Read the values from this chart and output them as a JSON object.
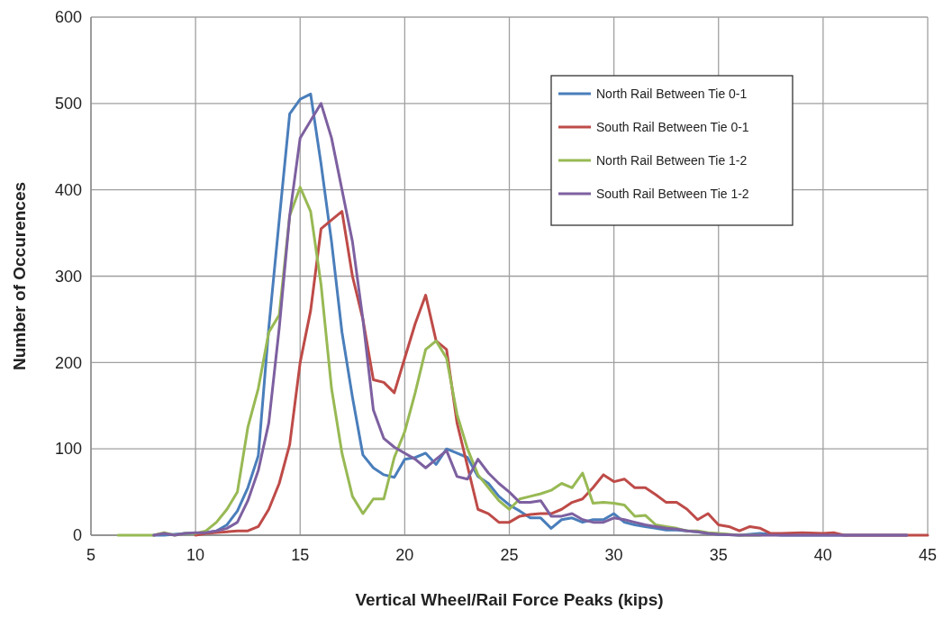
{
  "chart_data": {
    "type": "line",
    "xlabel": "Vertical Wheel/Rail Force Peaks (kips)",
    "ylabel": "Number of Occurences",
    "xlim": [
      5,
      45
    ],
    "xticks": [
      5,
      10,
      15,
      20,
      25,
      30,
      35,
      40,
      45
    ],
    "ylim": [
      0,
      600
    ],
    "yticks": [
      0,
      100,
      200,
      300,
      400,
      500,
      600
    ],
    "grid": true,
    "legend": "top right",
    "marker": "none",
    "line_style": "solid",
    "series": [
      {
        "name": "North Rail Between Tie 0-1",
        "color": "#4a7ebb",
        "x": [
          8,
          8.5,
          9,
          9.5,
          10,
          10.5,
          11,
          11.5,
          12,
          12.5,
          13,
          13.5,
          14,
          14.5,
          15,
          15.5,
          16,
          16.5,
          17,
          17.5,
          18,
          18.5,
          19,
          19.5,
          20,
          20.5,
          21,
          21.5,
          22,
          22.5,
          23,
          23.5,
          24,
          24.5,
          25,
          25.5,
          26,
          26.5,
          27,
          27.5,
          28,
          28.5,
          29,
          29.5,
          30,
          30.5,
          31,
          31.5,
          32,
          32.5,
          33,
          33.5,
          34,
          34.5,
          35,
          36,
          37,
          38,
          40,
          42,
          44
        ],
        "values": [
          0,
          0,
          1,
          2,
          2,
          3,
          5,
          12,
          28,
          55,
          92,
          240,
          365,
          488,
          505,
          511,
          430,
          340,
          235,
          160,
          93,
          78,
          70,
          67,
          88,
          90,
          95,
          82,
          100,
          95,
          90,
          68,
          60,
          45,
          35,
          28,
          20,
          20,
          8,
          18,
          20,
          15,
          18,
          18,
          25,
          15,
          12,
          10,
          8,
          6,
          6,
          5,
          4,
          2,
          1,
          0,
          2,
          0,
          0,
          0,
          0
        ]
      },
      {
        "name": "South Rail Between Tie 0-1",
        "color": "#be4b48",
        "x": [
          10,
          10.5,
          11,
          11.5,
          12,
          12.5,
          13,
          13.5,
          14,
          14.5,
          15,
          15.5,
          16,
          16.5,
          17,
          17.5,
          18,
          18.5,
          19,
          19.5,
          20,
          20.5,
          21,
          21.5,
          22,
          22.5,
          23,
          23.5,
          24,
          24.5,
          25,
          25.5,
          26,
          26.5,
          27,
          27.5,
          28,
          28.5,
          29,
          29.5,
          30,
          30.5,
          31,
          31.5,
          32,
          32.5,
          33,
          33.5,
          34,
          34.5,
          35,
          35.5,
          36,
          36.5,
          37,
          37.5,
          38,
          39,
          40,
          40.5,
          41,
          42,
          43,
          45
        ],
        "values": [
          0,
          2,
          3,
          4,
          5,
          5,
          10,
          30,
          60,
          105,
          200,
          260,
          355,
          365,
          375,
          300,
          250,
          180,
          177,
          165,
          205,
          245,
          278,
          225,
          215,
          130,
          80,
          30,
          25,
          15,
          15,
          22,
          24,
          25,
          25,
          30,
          38,
          42,
          55,
          70,
          62,
          65,
          55,
          55,
          47,
          38,
          38,
          30,
          18,
          25,
          12,
          10,
          5,
          10,
          8,
          2,
          2,
          3,
          2,
          3,
          0,
          0,
          0,
          0
        ]
      },
      {
        "name": "North Rail Between Tie 1-2",
        "color": "#98b954",
        "x": [
          6.3,
          7,
          8,
          8.5,
          9,
          9.5,
          10,
          10.5,
          11,
          11.5,
          12,
          12.5,
          13,
          13.5,
          14,
          14.5,
          15,
          15.5,
          16,
          16.5,
          17,
          17.5,
          18,
          18.5,
          19,
          19.5,
          20,
          20.5,
          21,
          21.5,
          22,
          22.5,
          23,
          23.5,
          24,
          24.5,
          25,
          25.5,
          26,
          26.5,
          27,
          27.5,
          28,
          28.5,
          29,
          29.5,
          30,
          30.5,
          31,
          31.5,
          32,
          32.5,
          33,
          33.5,
          34,
          34.5,
          35,
          36,
          37
        ],
        "values": [
          0,
          0,
          0,
          3,
          0,
          2,
          2,
          5,
          15,
          30,
          50,
          125,
          170,
          235,
          255,
          370,
          403,
          375,
          290,
          170,
          95,
          45,
          25,
          42,
          42,
          90,
          120,
          165,
          215,
          225,
          205,
          140,
          100,
          70,
          55,
          40,
          30,
          42,
          45,
          48,
          52,
          60,
          55,
          72,
          37,
          38,
          37,
          35,
          22,
          23,
          12,
          10,
          8,
          5,
          5,
          3,
          2,
          0,
          0
        ]
      },
      {
        "name": "South Rail Between Tie 1-2",
        "color": "#7d60a0",
        "x": [
          8,
          8.5,
          9,
          9.5,
          10,
          10.5,
          11,
          11.5,
          12,
          12.5,
          13,
          13.5,
          14,
          14.5,
          15,
          15.5,
          16,
          16.5,
          17,
          17.5,
          18,
          18.5,
          19,
          19.5,
          20,
          20.5,
          21,
          21.5,
          22,
          22.5,
          23,
          23.5,
          24,
          24.5,
          25,
          25.5,
          26,
          26.5,
          27,
          27.5,
          28,
          28.5,
          29,
          29.5,
          30,
          30.5,
          31,
          31.5,
          32,
          32.5,
          33,
          33.5,
          34,
          34.5,
          35,
          36,
          38,
          40,
          42,
          44
        ],
        "values": [
          0,
          2,
          0,
          2,
          3,
          3,
          5,
          8,
          15,
          40,
          75,
          130,
          240,
          370,
          460,
          480,
          500,
          460,
          400,
          340,
          250,
          145,
          112,
          102,
          95,
          88,
          78,
          88,
          98,
          68,
          65,
          88,
          72,
          60,
          50,
          38,
          38,
          40,
          22,
          22,
          25,
          18,
          15,
          15,
          20,
          18,
          15,
          12,
          10,
          8,
          7,
          5,
          4,
          2,
          1,
          0,
          0,
          0,
          0,
          0
        ]
      }
    ]
  }
}
